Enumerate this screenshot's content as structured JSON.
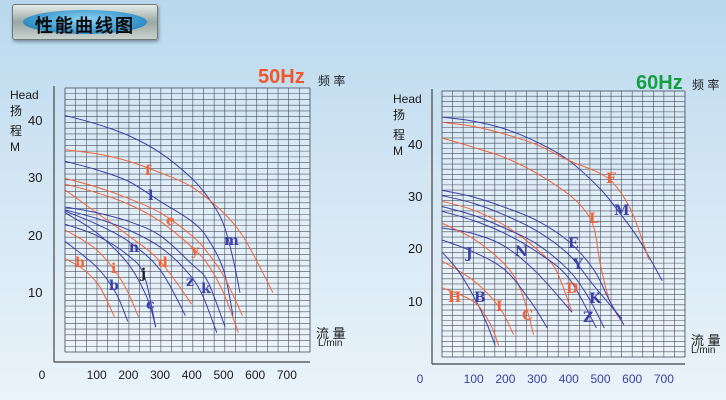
{
  "header": {
    "title": "性能曲线图"
  },
  "chart_data": [
    {
      "type": "line",
      "frequency_label": "50Hz",
      "frequency_caption": "频 率",
      "ylabel_en": "Head",
      "ylabel_cn_1": "扬",
      "ylabel_cn_2": "程",
      "ylabel_unit": "M",
      "xlabel_cn": "流 量",
      "xlabel_unit": "L/min",
      "xlim": [
        0,
        760
      ],
      "ylim": [
        0,
        46
      ],
      "xticks": [
        "0",
        "100",
        "200",
        "300",
        "400",
        "500",
        "600",
        "700"
      ],
      "yticks": [
        "10",
        "20",
        "30",
        "40"
      ],
      "grid": true,
      "colors": {
        "blue": "#3a3fa8",
        "orange": "#f0643a",
        "freq": "#f0582a",
        "ticks": "#1a1a1a"
      },
      "series": [
        {
          "name": "m",
          "color": "blue",
          "points": [
            [
              0,
              41
            ],
            [
              100,
              39.5
            ],
            [
              200,
              37.5
            ],
            [
              300,
              34.5
            ],
            [
              400,
              30
            ],
            [
              460,
              26
            ],
            [
              500,
              22
            ],
            [
              530,
              16
            ],
            [
              552,
              10
            ]
          ]
        },
        {
          "name": "f",
          "color": "orange",
          "points": [
            [
              0,
              35
            ],
            [
              100,
              34.3
            ],
            [
              200,
              33
            ],
            [
              300,
              31
            ],
            [
              400,
              28.5
            ],
            [
              500,
              24
            ],
            [
              560,
              20
            ],
            [
              610,
              15
            ],
            [
              656,
              10
            ]
          ]
        },
        {
          "name": "l",
          "color": "blue",
          "points": [
            [
              0,
              33
            ],
            [
              100,
              31.5
            ],
            [
              200,
              29.5
            ],
            [
              300,
              26
            ],
            [
              400,
              22.5
            ],
            [
              450,
              19.5
            ],
            [
              500,
              14
            ],
            [
              530,
              6
            ]
          ]
        },
        {
          "name": "e",
          "color": "orange",
          "points": [
            [
              0,
              30
            ],
            [
              100,
              28.5
            ],
            [
              200,
              26.5
            ],
            [
              300,
              24
            ],
            [
              400,
              20
            ],
            [
              450,
              17
            ],
            [
              500,
              13
            ],
            [
              560,
              6
            ]
          ]
        },
        {
          "name": "y",
          "color": "orange",
          "points": [
            [
              0,
              29
            ],
            [
              100,
              27.5
            ],
            [
              200,
              25.5
            ],
            [
              300,
              22.5
            ],
            [
              400,
              18
            ],
            [
              450,
              15
            ],
            [
              500,
              10
            ],
            [
              547,
              3
            ]
          ]
        },
        {
          "name": "d",
          "color": "orange",
          "points": [
            [
              0,
              28
            ],
            [
              100,
              24
            ],
            [
              200,
              20
            ],
            [
              300,
              15.5
            ],
            [
              400,
              8
            ]
          ]
        },
        {
          "name": "k",
          "color": "blue",
          "points": [
            [
              0,
              25
            ],
            [
              100,
              24
            ],
            [
              200,
              22.5
            ],
            [
              300,
              20
            ],
            [
              400,
              15
            ],
            [
              450,
              12
            ],
            [
              505,
              4
            ]
          ]
        },
        {
          "name": "z",
          "color": "blue",
          "points": [
            [
              0,
              24.5
            ],
            [
              100,
              23
            ],
            [
              200,
              21
            ],
            [
              300,
              18
            ],
            [
              380,
              14
            ],
            [
              430,
              10
            ],
            [
              479,
              3
            ]
          ]
        },
        {
          "name": "n",
          "color": "blue",
          "points": [
            [
              0,
              24.3
            ],
            [
              100,
              22
            ],
            [
              200,
              19
            ],
            [
              300,
              14
            ],
            [
              380,
              6
            ]
          ]
        },
        {
          "name": "j",
          "color": "blue",
          "points": [
            [
              0,
              22
            ],
            [
              100,
              20
            ],
            [
              200,
              16.5
            ],
            [
              250,
              13
            ],
            [
              286,
              4
            ]
          ]
        },
        {
          "name": "c",
          "color": "blue",
          "points": [
            [
              0,
              24
            ],
            [
              100,
              20.5
            ],
            [
              200,
              15
            ],
            [
              260,
              9
            ],
            [
              286,
              4
            ]
          ]
        },
        {
          "name": "i",
          "color": "orange",
          "points": [
            [
              0,
              21
            ],
            [
              100,
              17.5
            ],
            [
              180,
              12
            ],
            [
              232,
              5.8
            ]
          ]
        },
        {
          "name": "b",
          "color": "blue",
          "points": [
            [
              0,
              19
            ],
            [
              100,
              14.5
            ],
            [
              160,
              10
            ],
            [
              198,
              5
            ]
          ]
        },
        {
          "name": "h",
          "color": "orange",
          "points": [
            [
              0,
              16
            ],
            [
              60,
              14
            ],
            [
              110,
              11
            ],
            [
              156,
              5.8
            ]
          ]
        }
      ]
    },
    {
      "type": "line",
      "frequency_label": "60Hz",
      "frequency_caption": "频 率",
      "ylabel_en": "Head",
      "ylabel_cn_1": "扬",
      "ylabel_cn_2": "程",
      "ylabel_unit": "M",
      "xlabel_cn": "流 量",
      "xlabel_unit": "L/min",
      "xlim": [
        0,
        770
      ],
      "ylim": [
        0,
        51
      ],
      "xticks": [
        "0",
        "100",
        "200",
        "300",
        "400",
        "500",
        "600",
        "700"
      ],
      "yticks": [
        "10",
        "20",
        "30",
        "40"
      ],
      "grid": true,
      "colors": {
        "blue": "#3a3fa8",
        "orange": "#f0643a",
        "freq": "#14a040",
        "ticks": "#3b3fa0"
      },
      "series": [
        {
          "name": "M",
          "color": "blue",
          "points": [
            [
              0,
              45.3
            ],
            [
              100,
              44.5
            ],
            [
              200,
              43
            ],
            [
              300,
              40.5
            ],
            [
              400,
              37
            ],
            [
              500,
              31.5
            ],
            [
              560,
              27
            ],
            [
              620,
              22
            ],
            [
              695,
              14
            ]
          ]
        },
        {
          "name": "F",
          "color": "orange",
          "points": [
            [
              0,
              44.3
            ],
            [
              100,
              43.5
            ],
            [
              200,
              42
            ],
            [
              300,
              40
            ],
            [
              400,
              37
            ],
            [
              500,
              34.5
            ],
            [
              550,
              32
            ],
            [
              600,
              27
            ],
            [
              653,
              18
            ]
          ]
        },
        {
          "name": "L",
          "color": "orange",
          "points": [
            [
              0,
              41.3
            ],
            [
              100,
              39.5
            ],
            [
              200,
              37.5
            ],
            [
              300,
              34.5
            ],
            [
              400,
              30.5
            ],
            [
              450,
              27.5
            ],
            [
              480,
              24
            ],
            [
              500,
              17
            ],
            [
              530,
              10
            ],
            [
              574,
              5.6
            ]
          ]
        },
        {
          "name": "E",
          "color": "blue",
          "points": [
            [
              0,
              31.3
            ],
            [
              100,
              30
            ],
            [
              200,
              28
            ],
            [
              300,
              25.5
            ],
            [
              400,
              21.5
            ],
            [
              480,
              16
            ],
            [
              530,
              10
            ],
            [
              574,
              5.6
            ]
          ]
        },
        {
          "name": "Y",
          "color": "blue",
          "points": [
            [
              0,
              30.3
            ],
            [
              100,
              28.8
            ],
            [
              200,
              26.5
            ],
            [
              300,
              23.5
            ],
            [
              400,
              19
            ],
            [
              480,
              13
            ],
            [
              568,
              6.7
            ]
          ]
        },
        {
          "name": "D",
          "color": "orange",
          "points": [
            [
              0,
              29.2
            ],
            [
              100,
              27.5
            ],
            [
              200,
              24.5
            ],
            [
              300,
              20
            ],
            [
              360,
              16
            ],
            [
              410,
              8
            ]
          ]
        },
        {
          "name": "K",
          "color": "blue",
          "points": [
            [
              0,
              28.2
            ],
            [
              100,
              26.5
            ],
            [
              200,
              24
            ],
            [
              300,
              21
            ],
            [
              400,
              16
            ],
            [
              460,
              11
            ],
            [
              512,
              5
            ]
          ]
        },
        {
          "name": "Z",
          "color": "blue",
          "points": [
            [
              0,
              27.3
            ],
            [
              100,
              25.5
            ],
            [
              200,
              23
            ],
            [
              300,
              19.5
            ],
            [
              400,
              14.5
            ],
            [
              487,
              5
            ]
          ]
        },
        {
          "name": "N",
          "color": "blue",
          "points": [
            [
              0,
              24.1
            ],
            [
              100,
              23
            ],
            [
              200,
              20.5
            ],
            [
              300,
              15.5
            ],
            [
              410,
              8
            ]
          ]
        },
        {
          "name": "C",
          "color": "orange",
          "points": [
            [
              0,
              25
            ],
            [
              100,
              22
            ],
            [
              200,
              17
            ],
            [
              250,
              12
            ],
            [
              289,
              3.7
            ]
          ]
        },
        {
          "name": "J",
          "color": "blue",
          "points": [
            [
              0,
              21.8
            ],
            [
              100,
              19.5
            ],
            [
              200,
              16
            ],
            [
              280,
              10
            ],
            [
              332,
              5
            ]
          ]
        },
        {
          "name": "I",
          "color": "orange",
          "points": [
            [
              0,
              17.8
            ],
            [
              100,
              14
            ],
            [
              180,
              9
            ],
            [
              226,
              3.7
            ]
          ]
        },
        {
          "name": "B",
          "color": "blue",
          "points": [
            [
              0,
              19.5
            ],
            [
              50,
              16
            ],
            [
              100,
              11
            ],
            [
              140,
              6
            ],
            [
              168,
              1.6
            ]
          ]
        },
        {
          "name": "H",
          "color": "orange",
          "points": [
            [
              0,
              12.7
            ],
            [
              100,
              10
            ],
            [
              150,
              6
            ],
            [
              179,
              1.6
            ]
          ]
        }
      ]
    }
  ]
}
